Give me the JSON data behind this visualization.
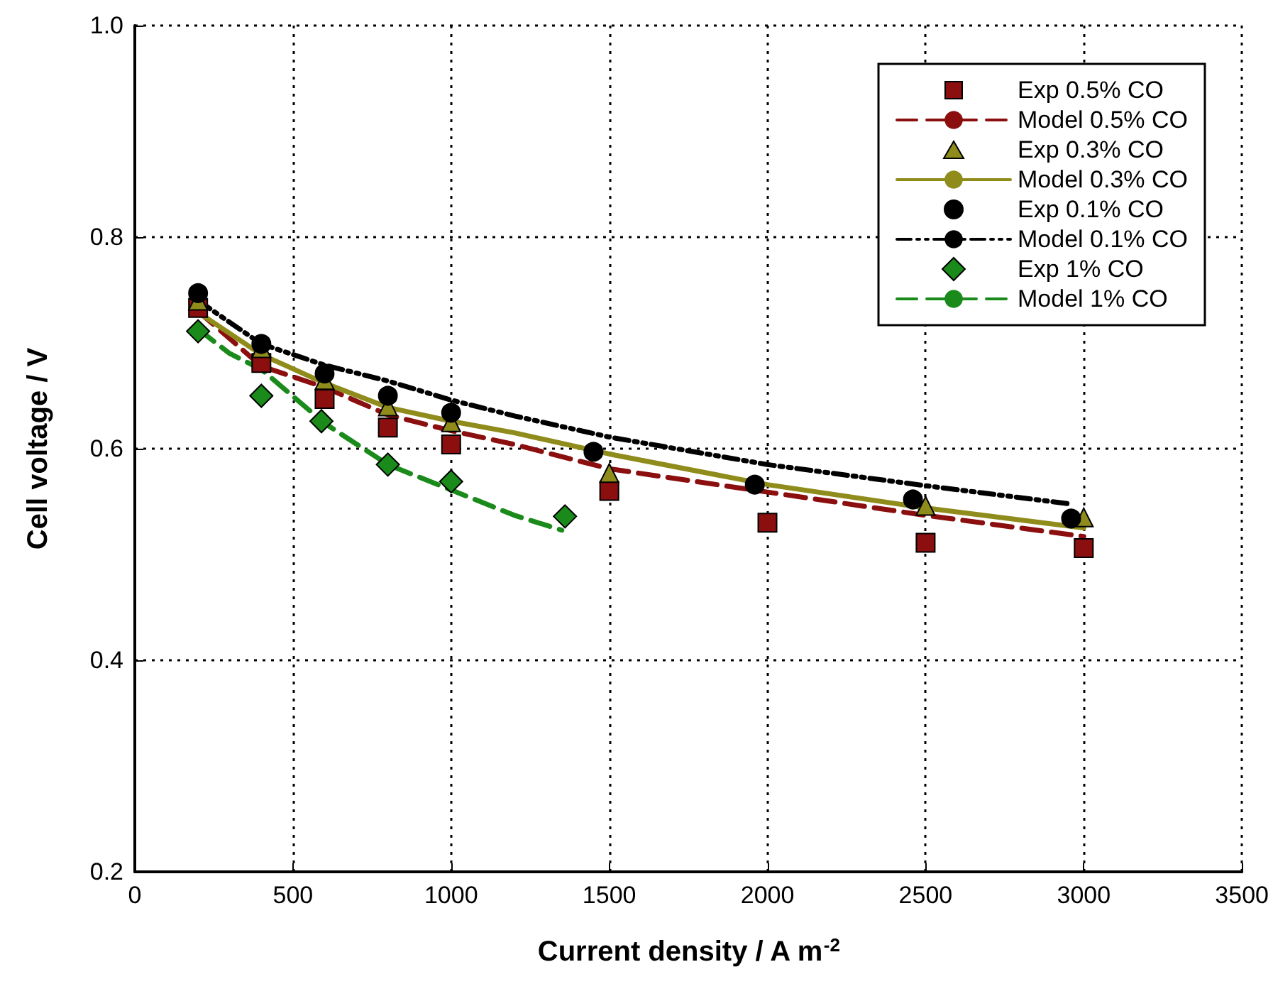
{
  "chart_data": {
    "type": "scatter",
    "xlabel": "Current density / A m$^{-2}$",
    "ylabel": "Cell voltage / V",
    "xlim": [
      0,
      3500
    ],
    "xticks": [
      0,
      500,
      1000,
      1500,
      2000,
      2500,
      3000,
      3500
    ],
    "ylim": [
      0.2,
      1.0
    ],
    "yticks": [
      {
        "value": 0.2,
        "label": "0.2"
      },
      {
        "value": 0.4,
        "label": "0.4"
      },
      {
        "value": 0.6,
        "label": "0.6"
      },
      {
        "value": 0.8,
        "label": "0.8"
      },
      {
        "value": 1.0,
        "label": "1.0"
      }
    ],
    "grid": true,
    "legend": "top right",
    "series": [
      {
        "name": "Exp 0.5% CO",
        "marker": "square",
        "color": "#8b0f0f",
        "x": [
          200,
          400,
          600,
          800,
          1000,
          1500,
          2000,
          2500,
          3000
        ],
        "values": [
          0.733,
          0.681,
          0.647,
          0.62,
          0.604,
          0.56,
          0.53,
          0.511,
          0.506
        ]
      },
      {
        "name": "Model 0.5% CO",
        "type": "line",
        "line_style": "dashed",
        "color": "#8b0f0f",
        "x": [
          200,
          400,
          600,
          800,
          1000,
          1200,
          1500,
          2000,
          2500,
          3000
        ],
        "values": [
          0.73,
          0.678,
          0.658,
          0.632,
          0.617,
          0.604,
          0.581,
          0.559,
          0.537,
          0.517
        ]
      },
      {
        "name": "Exp 0.3% CO",
        "marker": "triangle",
        "color": "#8f8c1c",
        "x": [
          200,
          400,
          600,
          800,
          1000,
          1500,
          2500,
          3000
        ],
        "values": [
          0.74,
          0.695,
          0.665,
          0.64,
          0.625,
          0.577,
          0.546,
          0.535
        ]
      },
      {
        "name": "Model 0.3% CO",
        "type": "line",
        "line_style": "solid",
        "color": "#8f8c1c",
        "x": [
          200,
          400,
          600,
          800,
          1000,
          1200,
          1500,
          2000,
          2500,
          3000
        ],
        "values": [
          0.729,
          0.689,
          0.662,
          0.639,
          0.626,
          0.615,
          0.595,
          0.566,
          0.544,
          0.525
        ]
      },
      {
        "name": "Exp 0.1% CO",
        "marker": "circle",
        "color": "#000000",
        "x": [
          200,
          400,
          600,
          800,
          1000,
          1450,
          1960,
          2460,
          2960
        ],
        "values": [
          0.747,
          0.699,
          0.671,
          0.65,
          0.634,
          0.597,
          0.566,
          0.552,
          0.534
        ]
      },
      {
        "name": "Model 0.1% CO",
        "type": "line",
        "line_style": "dotted",
        "color": "#000000",
        "x": [
          200,
          400,
          600,
          800,
          1000,
          1200,
          1500,
          2000,
          2500,
          2950
        ],
        "values": [
          0.74,
          0.699,
          0.679,
          0.664,
          0.646,
          0.631,
          0.611,
          0.585,
          0.565,
          0.548
        ]
      },
      {
        "name": "Exp 1% CO",
        "marker": "diamond",
        "color": "#1a8a1a",
        "x": [
          200,
          400,
          590,
          800,
          1000,
          1360
        ],
        "values": [
          0.711,
          0.65,
          0.626,
          0.585,
          0.569,
          0.536
        ]
      },
      {
        "name": "Model 1% CO",
        "type": "line",
        "line_style": "dashed",
        "color": "#1a8a1a",
        "x": [
          200,
          300,
          400,
          600,
          800,
          1000,
          1200,
          1350
        ],
        "values": [
          0.713,
          0.69,
          0.675,
          0.624,
          0.585,
          0.561,
          0.537,
          0.523
        ]
      }
    ]
  }
}
